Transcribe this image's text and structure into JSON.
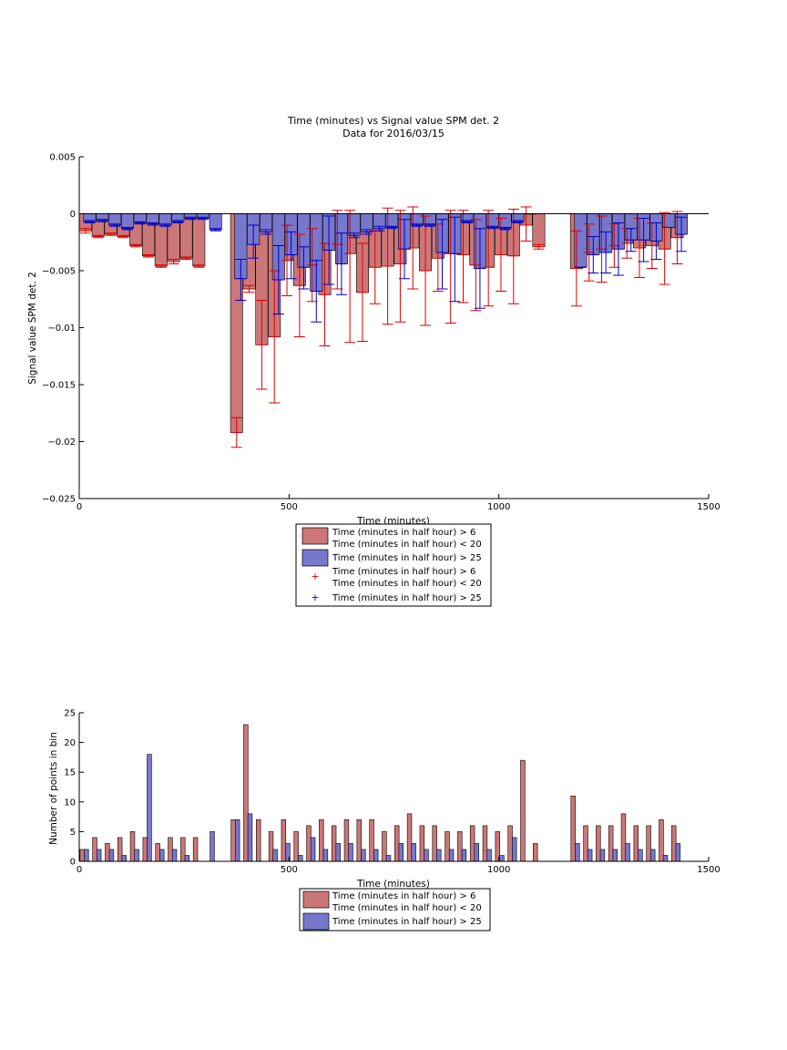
{
  "colors": {
    "red_bar": "#cc7777",
    "blue_bar": "#7777cc",
    "red_err": "#dd0000",
    "blue_err": "#0000cc",
    "axis": "#000000"
  },
  "chart_data": [
    {
      "type": "bar",
      "title": "Time (minutes) vs Signal value SPM det. 2",
      "subtitle": "Data for 2016/03/15",
      "xlabel": "Time (minutes)",
      "ylabel": "Signal value SPM det. 2",
      "xlim": [
        0,
        1500
      ],
      "ylim": [
        -0.025,
        0.005
      ],
      "xticks": [
        0,
        500,
        1000,
        1500
      ],
      "xtick_labels": [
        "0",
        "500",
        "1000",
        "1500"
      ],
      "yticks": [
        0.005,
        0,
        -0.005,
        -0.01,
        -0.015,
        -0.02,
        -0.025
      ],
      "ytick_labels": [
        "0.005",
        "0",
        "−0.005",
        "−0.01",
        "−0.015",
        "−0.02",
        "−0.025"
      ],
      "legend": {
        "position": "below",
        "entries": [
          {
            "kind": "red_bar",
            "lines": [
              "Time (minutes in half hour) > 6",
              "Time (minutes in half hour) < 20"
            ]
          },
          {
            "kind": "blue_bar",
            "lines": [
              "Time (minutes in half hour) > 25"
            ]
          },
          {
            "kind": "red_plus",
            "lines": [
              "Time (minutes in half hour) > 6",
              "Time (minutes in half hour) < 20"
            ]
          },
          {
            "kind": "blue_plus",
            "lines": [
              "Time (minutes in half hour) > 25"
            ]
          }
        ]
      },
      "series": [
        {
          "color_key": "red_bar",
          "x": [
            15,
            45,
            75,
            105,
            135,
            165,
            195,
            225,
            255,
            285,
            375,
            405,
            435,
            465,
            495,
            525,
            555,
            585,
            615,
            645,
            675,
            705,
            735,
            765,
            795,
            825,
            855,
            885,
            915,
            945,
            975,
            1005,
            1035,
            1065,
            1095,
            1185,
            1215,
            1245,
            1275,
            1305,
            1335,
            1365,
            1395,
            1425
          ],
          "values": [
            -0.0015,
            -0.002,
            -0.0018,
            -0.002,
            -0.0028,
            -0.0037,
            -0.0046,
            -0.0042,
            -0.0039,
            -0.0046,
            -0.0192,
            -0.0066,
            -0.0115,
            -0.0108,
            -0.0041,
            -0.0063,
            -0.0045,
            -0.0071,
            -0.0027,
            -0.0035,
            -0.0069,
            -0.0047,
            -0.0046,
            -0.0044,
            -0.003,
            -0.005,
            -0.0039,
            -0.0035,
            -0.0036,
            -0.0045,
            -0.0047,
            -0.0036,
            -0.0037,
            -0.001,
            -0.0029,
            -0.0048,
            -0.0034,
            -0.0031,
            -0.0028,
            -0.0026,
            -0.003,
            -0.0028,
            -0.0031,
            -0.0021
          ],
          "err_low": [
            -0.0017,
            -0.0021,
            -0.0019,
            -0.0021,
            -0.0029,
            -0.0038,
            -0.0047,
            -0.0044,
            -0.004,
            -0.0047,
            -0.0205,
            -0.0069,
            -0.0154,
            -0.0166,
            -0.0072,
            -0.0108,
            -0.0077,
            -0.0116,
            -0.0066,
            -0.0113,
            -0.0112,
            -0.0079,
            -0.0097,
            -0.0095,
            -0.0066,
            -0.0098,
            -0.0068,
            -0.0096,
            -0.0078,
            -0.0085,
            -0.0081,
            -0.0068,
            -0.0079,
            -0.0024,
            -0.0031,
            -0.0081,
            -0.0059,
            -0.006,
            -0.0047,
            -0.0039,
            -0.0056,
            -0.0048,
            -0.0062,
            -0.0044
          ],
          "err_high": [
            -0.0013,
            -0.0019,
            -0.0017,
            -0.0019,
            -0.0027,
            -0.0036,
            -0.0045,
            -0.004,
            -0.0038,
            -0.0045,
            -0.0179,
            -0.0063,
            -0.0076,
            -0.005,
            -0.001,
            -0.0018,
            -0.0013,
            -0.0026,
            0.0003,
            0.0003,
            -0.0026,
            -0.0015,
            0.0005,
            0.0003,
            0.0006,
            -0.0002,
            -0.0009,
            0.0003,
            0.0003,
            -0.0005,
            0.0003,
            -0.0004,
            0.0004,
            0.0006,
            -0.0027,
            -0.0015,
            -0.0009,
            -0.0002,
            -0.0009,
            -0.0013,
            -0.0004,
            -0.0008,
            0.0001,
            0.0002
          ]
        },
        {
          "color_key": "blue_bar",
          "x": [
            25,
            55,
            85,
            115,
            145,
            175,
            205,
            235,
            265,
            295,
            325,
            385,
            415,
            445,
            475,
            505,
            535,
            565,
            595,
            625,
            655,
            685,
            715,
            745,
            775,
            805,
            835,
            865,
            895,
            925,
            955,
            985,
            1015,
            1045,
            1075,
            1195,
            1225,
            1255,
            1285,
            1315,
            1345,
            1375,
            1405,
            1435
          ],
          "values": [
            -0.0007,
            -0.0006,
            -0.001,
            -0.0013,
            -0.0008,
            -0.0009,
            -0.001,
            -0.0007,
            -0.0004,
            -0.0004,
            -0.0014,
            -0.0057,
            -0.0027,
            -0.0016,
            -0.0058,
            -0.0036,
            -0.0047,
            -0.0068,
            -0.0032,
            -0.0044,
            -0.0019,
            -0.0016,
            -0.0013,
            -0.0012,
            -0.0031,
            -0.001,
            -0.001,
            -0.0034,
            -0.0035,
            -0.0007,
            -0.0048,
            -0.0012,
            -0.0013,
            -0.0007,
            0.0,
            -0.0047,
            -0.0036,
            -0.0034,
            -0.0031,
            -0.0023,
            -0.0023,
            -0.0024,
            -0.0012,
            -0.0018
          ],
          "err_low": [
            -0.0008,
            -0.0007,
            -0.0011,
            -0.0014,
            -0.0009,
            -0.001,
            -0.0011,
            -0.0008,
            -0.0005,
            -0.0005,
            -0.0015,
            -0.0076,
            -0.0039,
            -0.0018,
            -0.0088,
            -0.0057,
            -0.0066,
            -0.0095,
            -0.0062,
            -0.0071,
            -0.0021,
            -0.0018,
            -0.0015,
            -0.0013,
            -0.0057,
            -0.0011,
            -0.0011,
            -0.0066,
            -0.0077,
            -0.0008,
            -0.0083,
            -0.0013,
            -0.0014,
            -0.0008,
            0.0,
            -0.0047,
            -0.0052,
            -0.0052,
            -0.0054,
            -0.0033,
            -0.0042,
            -0.004,
            -0.0012,
            -0.0033
          ],
          "err_high": [
            -0.0006,
            -0.0005,
            -0.0009,
            -0.0012,
            -0.0007,
            -0.0008,
            -0.0009,
            -0.0006,
            -0.0003,
            -0.0003,
            -0.0013,
            -0.004,
            -0.001,
            -0.0014,
            -0.0028,
            -0.0016,
            -0.0029,
            -0.0041,
            -0.0002,
            -0.0017,
            -0.0017,
            -0.0014,
            -0.0011,
            -0.0011,
            -0.0005,
            -0.0009,
            -0.0009,
            -0.0005,
            -0.0003,
            -0.0006,
            -0.0013,
            -0.0011,
            -0.0012,
            -0.0006,
            0.0,
            -0.0047,
            -0.002,
            -0.0016,
            -0.0008,
            -0.0013,
            -0.0004,
            -0.0008,
            -0.0012,
            -0.0003
          ]
        }
      ]
    },
    {
      "type": "bar",
      "xlabel": "Time (minutes)",
      "ylabel": "Number of points in bin",
      "xlim": [
        0,
        1500
      ],
      "ylim": [
        0,
        25
      ],
      "xticks": [
        0,
        500,
        1000,
        1500
      ],
      "xtick_labels": [
        "0",
        "500",
        "1000",
        "1500"
      ],
      "yticks": [
        25,
        20,
        15,
        10,
        5,
        0
      ],
      "ytick_labels": [
        "25",
        "20",
        "15",
        "10",
        "5",
        "0"
      ],
      "legend": {
        "position": "below",
        "entries": [
          {
            "kind": "red_bar",
            "lines": [
              "Time (minutes in half hour) > 6",
              "Time (minutes in half hour) < 20"
            ]
          },
          {
            "kind": "blue_bar",
            "lines": [
              "Time (minutes in half hour) > 25"
            ]
          }
        ]
      },
      "series": [
        {
          "color_key": "red_bar",
          "x": [
            7,
            37,
            67,
            97,
            127,
            157,
            187,
            217,
            247,
            277,
            367,
            397,
            427,
            457,
            487,
            517,
            547,
            577,
            607,
            637,
            667,
            697,
            727,
            757,
            787,
            817,
            847,
            877,
            907,
            937,
            967,
            997,
            1027,
            1057,
            1087,
            1177,
            1207,
            1237,
            1267,
            1297,
            1327,
            1357,
            1387,
            1417
          ],
          "values": [
            2,
            4,
            3,
            4,
            5,
            4,
            3,
            4,
            4,
            4,
            7,
            23,
            7,
            5,
            7,
            5,
            6,
            7,
            6,
            7,
            7,
            7,
            5,
            6,
            8,
            6,
            6,
            5,
            5,
            6,
            6,
            5,
            6,
            17,
            3,
            11,
            6,
            6,
            6,
            8,
            6,
            6,
            7,
            6
          ]
        },
        {
          "color_key": "blue_bar",
          "x": [
            17,
            47,
            77,
            107,
            137,
            167,
            197,
            227,
            257,
            317,
            377,
            407,
            467,
            497,
            527,
            557,
            587,
            617,
            647,
            677,
            707,
            737,
            767,
            797,
            827,
            857,
            887,
            917,
            947,
            977,
            1007,
            1037,
            1187,
            1217,
            1247,
            1277,
            1307,
            1337,
            1367,
            1397,
            1427
          ],
          "values": [
            2,
            2,
            2,
            1,
            2,
            18,
            2,
            2,
            1,
            5,
            7,
            8,
            2,
            3,
            1,
            4,
            2,
            3,
            3,
            2,
            2,
            1,
            3,
            3,
            2,
            2,
            2,
            2,
            3,
            2,
            1,
            4,
            3,
            2,
            2,
            2,
            3,
            2,
            2,
            1,
            3
          ]
        }
      ]
    }
  ]
}
